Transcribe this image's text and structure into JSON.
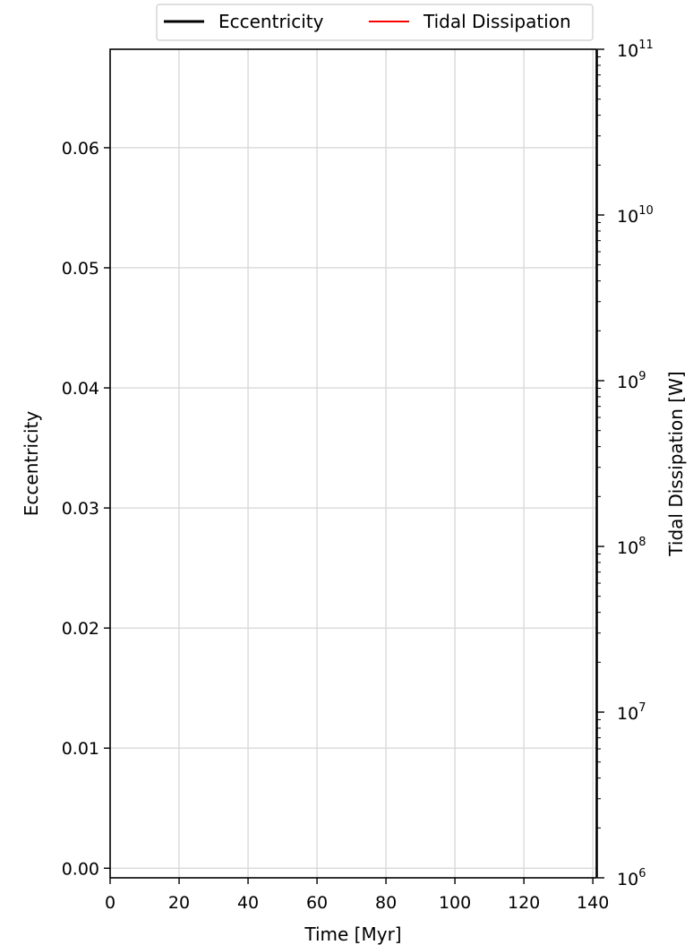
{
  "chart_data": {
    "type": "line",
    "title": "",
    "xlabel": "Time [Myr]",
    "ylabel": "Eccentricity",
    "y2label": "Tidal Dissipation [W]",
    "xlim": [
      0,
      141
    ],
    "ylim": [
      -0.0008,
      0.0682
    ],
    "y2lim": [
      1000000,
      100000000000
    ],
    "y2scale": "log",
    "xticks": [
      0,
      20,
      40,
      60,
      80,
      100,
      120,
      140
    ],
    "xtick_labels": [
      "0",
      "20",
      "40",
      "60",
      "80",
      "100",
      "120",
      "140"
    ],
    "yticks": [
      0.0,
      0.01,
      0.02,
      0.03,
      0.04,
      0.05,
      0.06
    ],
    "ytick_labels": [
      "0.00",
      "0.01",
      "0.02",
      "0.03",
      "0.04",
      "0.05",
      "0.06"
    ],
    "y2ticks": [
      1000000,
      10000000,
      100000000,
      1000000000,
      10000000000,
      100000000000
    ],
    "y2tick_labels": [
      {
        "base": "10",
        "exp": "6"
      },
      {
        "base": "10",
        "exp": "7"
      },
      {
        "base": "10",
        "exp": "8"
      },
      {
        "base": "10",
        "exp": "9"
      },
      {
        "base": "10",
        "exp": "10"
      },
      {
        "base": "10",
        "exp": "11"
      }
    ],
    "grid": true,
    "legend_position": "top-center",
    "series": [
      {
        "name": "Eccentricity",
        "color": "#000000",
        "axis": "left",
        "x": [],
        "y": []
      },
      {
        "name": "Tidal Dissipation",
        "color": "#ff0000",
        "axis": "right",
        "x": [],
        "y": []
      }
    ]
  }
}
